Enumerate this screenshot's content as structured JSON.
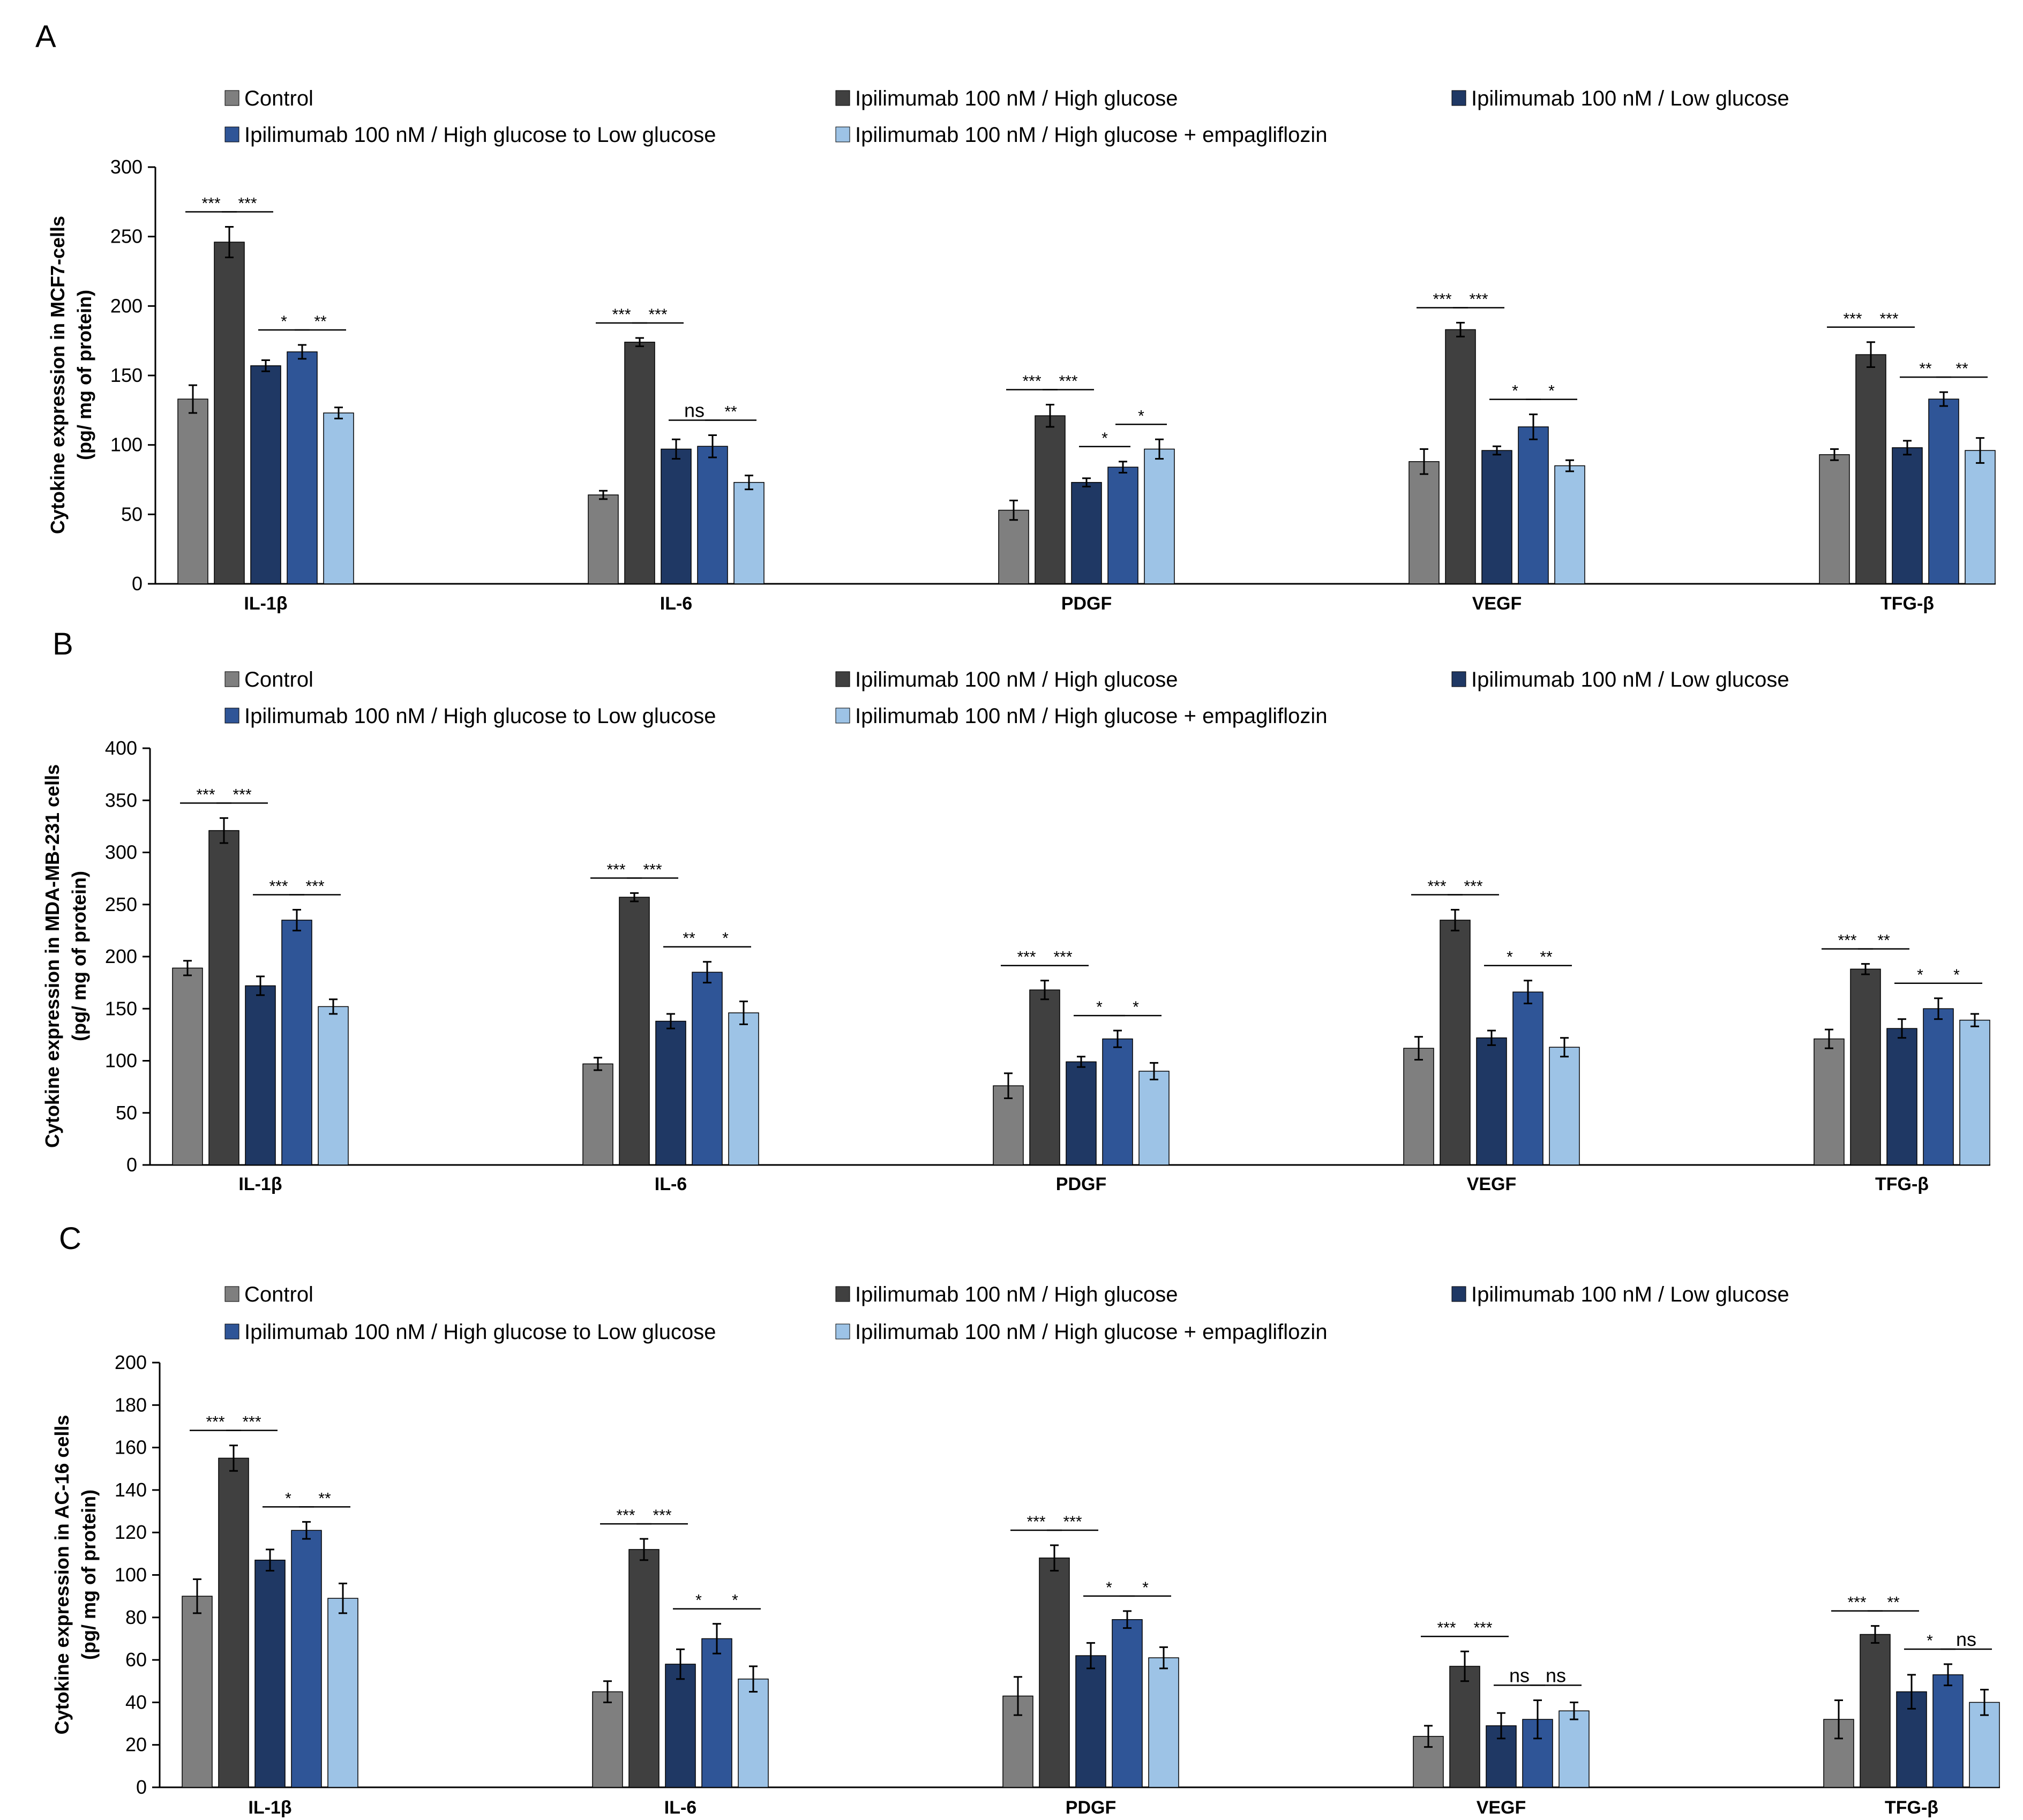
{
  "colors": {
    "control": "#7f7f7f",
    "high_glucose": "#404040",
    "low_glucose": "#1f3864",
    "high_to_low": "#2f5597",
    "empagliflozin": "#9dc3e6",
    "axis": "#000000"
  },
  "chart_data": [
    {
      "type": "bar",
      "panel_label": "A",
      "ylabel_line1": "Cytokine expression  in MCF7-cells",
      "ylabel_line2": "(pg/ mg of protein)",
      "ylim": [
        0,
        300
      ],
      "yticks": [
        "0",
        "50",
        "100",
        "150",
        "200",
        "250",
        "300"
      ],
      "categories": [
        "IL-1β",
        "IL-6",
        "PDGF",
        "VEGF",
        "TFG-β"
      ],
      "legend_position": "top",
      "series": [
        {
          "name": "Control",
          "values": [
            133,
            64,
            53,
            88,
            93
          ],
          "errors": [
            10,
            3,
            7,
            9,
            4
          ]
        },
        {
          "name": "Ipilimumab 100 nM / High glucose",
          "values": [
            246,
            174,
            121,
            183,
            165
          ],
          "errors": [
            11,
            3,
            8,
            5,
            9
          ]
        },
        {
          "name": "Ipilimumab 100 nM / Low glucose",
          "values": [
            157,
            97,
            73,
            96,
            98
          ],
          "errors": [
            4,
            7,
            3,
            3,
            5
          ]
        },
        {
          "name": "Ipilimumab 100 nM / High glucose to Low glucose",
          "values": [
            167,
            99,
            84,
            113,
            133
          ],
          "errors": [
            5,
            8,
            4,
            9,
            5
          ]
        },
        {
          "name": "Ipilimumab 100 nM / High glucose + empagliflozin",
          "values": [
            123,
            73,
            97,
            85,
            96
          ],
          "errors": [
            4,
            5,
            7,
            4,
            9
          ]
        }
      ],
      "significance": [
        {
          "cat": 0,
          "from": 0,
          "to": 1,
          "label": "***"
        },
        {
          "cat": 0,
          "from": 1,
          "to": 2,
          "label": "***"
        },
        {
          "cat": 0,
          "from": 2,
          "to": 3,
          "label": "*"
        },
        {
          "cat": 0,
          "from": 3,
          "to": 4,
          "label": "**"
        },
        {
          "cat": 1,
          "from": 0,
          "to": 1,
          "label": "***"
        },
        {
          "cat": 1,
          "from": 1,
          "to": 2,
          "label": "***"
        },
        {
          "cat": 1,
          "from": 2,
          "to": 3,
          "label": "ns"
        },
        {
          "cat": 1,
          "from": 3,
          "to": 4,
          "label": "**"
        },
        {
          "cat": 2,
          "from": 0,
          "to": 1,
          "label": "***"
        },
        {
          "cat": 2,
          "from": 1,
          "to": 2,
          "label": "***"
        },
        {
          "cat": 2,
          "from": 2,
          "to": 3,
          "label": "*"
        },
        {
          "cat": 2,
          "from": 3,
          "to": 4,
          "label": "*"
        },
        {
          "cat": 3,
          "from": 0,
          "to": 1,
          "label": "***"
        },
        {
          "cat": 3,
          "from": 1,
          "to": 2,
          "label": "***"
        },
        {
          "cat": 3,
          "from": 2,
          "to": 3,
          "label": "*"
        },
        {
          "cat": 3,
          "from": 3,
          "to": 4,
          "label": "*"
        },
        {
          "cat": 4,
          "from": 0,
          "to": 1,
          "label": "***"
        },
        {
          "cat": 4,
          "from": 1,
          "to": 2,
          "label": "***"
        },
        {
          "cat": 4,
          "from": 2,
          "to": 3,
          "label": "**"
        },
        {
          "cat": 4,
          "from": 3,
          "to": 4,
          "label": "**"
        }
      ]
    },
    {
      "type": "bar",
      "panel_label": "B",
      "ylabel_line1": "Cytokine expression  in MDA-MB-231 cells",
      "ylabel_line2": "(pg/ mg of protein)",
      "ylim": [
        0,
        400
      ],
      "yticks": [
        "0",
        "50",
        "100",
        "150",
        "200",
        "250",
        "300",
        "350",
        "400"
      ],
      "categories": [
        "IL-1β",
        "IL-6",
        "PDGF",
        "VEGF",
        "TFG-β"
      ],
      "legend_position": "top",
      "series": [
        {
          "name": "Control",
          "values": [
            189,
            97,
            76,
            112,
            121
          ],
          "errors": [
            7,
            6,
            12,
            11,
            9
          ]
        },
        {
          "name": "Ipilimumab 100 nM / High glucose",
          "values": [
            321,
            257,
            168,
            235,
            188
          ],
          "errors": [
            12,
            4,
            9,
            10,
            5
          ]
        },
        {
          "name": "Ipilimumab 100 nM / Low glucose",
          "values": [
            172,
            138,
            99,
            122,
            131
          ],
          "errors": [
            9,
            7,
            5,
            7,
            9
          ]
        },
        {
          "name": "Ipilimumab 100 nM / High glucose to Low glucose",
          "values": [
            235,
            185,
            121,
            166,
            150
          ],
          "errors": [
            10,
            10,
            8,
            11,
            10
          ]
        },
        {
          "name": "Ipilimumab 100 nM / High glucose + empagliflozin",
          "values": [
            152,
            146,
            90,
            113,
            139
          ],
          "errors": [
            7,
            11,
            8,
            9,
            6
          ]
        }
      ],
      "significance": [
        {
          "cat": 0,
          "from": 0,
          "to": 1,
          "label": "***"
        },
        {
          "cat": 0,
          "from": 1,
          "to": 2,
          "label": "***"
        },
        {
          "cat": 0,
          "from": 2,
          "to": 3,
          "label": "***"
        },
        {
          "cat": 0,
          "from": 3,
          "to": 4,
          "label": "***"
        },
        {
          "cat": 1,
          "from": 0,
          "to": 1,
          "label": "***"
        },
        {
          "cat": 1,
          "from": 1,
          "to": 2,
          "label": "***"
        },
        {
          "cat": 1,
          "from": 2,
          "to": 3,
          "label": "**"
        },
        {
          "cat": 1,
          "from": 3,
          "to": 4,
          "label": "*"
        },
        {
          "cat": 2,
          "from": 0,
          "to": 1,
          "label": "***"
        },
        {
          "cat": 2,
          "from": 1,
          "to": 2,
          "label": "***"
        },
        {
          "cat": 2,
          "from": 2,
          "to": 3,
          "label": "*"
        },
        {
          "cat": 2,
          "from": 3,
          "to": 4,
          "label": "*"
        },
        {
          "cat": 3,
          "from": 0,
          "to": 1,
          "label": "***"
        },
        {
          "cat": 3,
          "from": 1,
          "to": 2,
          "label": "***"
        },
        {
          "cat": 3,
          "from": 2,
          "to": 3,
          "label": "*"
        },
        {
          "cat": 3,
          "from": 3,
          "to": 4,
          "label": "**"
        },
        {
          "cat": 4,
          "from": 0,
          "to": 1,
          "label": "***"
        },
        {
          "cat": 4,
          "from": 1,
          "to": 2,
          "label": "**"
        },
        {
          "cat": 4,
          "from": 2,
          "to": 3,
          "label": "*"
        },
        {
          "cat": 4,
          "from": 3,
          "to": 4,
          "label": "*"
        }
      ]
    },
    {
      "type": "bar",
      "panel_label": "C",
      "ylabel_line1": "Cytokine expression  in AC-16 cells",
      "ylabel_line2": "(pg/ mg of protein)",
      "ylim": [
        0,
        200
      ],
      "yticks": [
        "0",
        "20",
        "40",
        "60",
        "80",
        "100",
        "120",
        "140",
        "160",
        "180",
        "200"
      ],
      "categories": [
        "IL-1β",
        "IL-6",
        "PDGF",
        "VEGF",
        "TFG-β"
      ],
      "legend_position": "top",
      "series": [
        {
          "name": "Control",
          "values": [
            90,
            45,
            43,
            24,
            32
          ],
          "errors": [
            8,
            5,
            9,
            5,
            9
          ]
        },
        {
          "name": "Ipilimumab 100 nM / High glucose",
          "values": [
            155,
            112,
            108,
            57,
            72
          ],
          "errors": [
            6,
            5,
            6,
            7,
            4
          ]
        },
        {
          "name": "Ipilimumab 100 nM / Low glucose",
          "values": [
            107,
            58,
            62,
            29,
            45
          ],
          "errors": [
            5,
            7,
            6,
            6,
            8
          ]
        },
        {
          "name": "Ipilimumab 100 nM / High glucose to Low glucose",
          "values": [
            121,
            70,
            79,
            32,
            53
          ],
          "errors": [
            4,
            7,
            4,
            9,
            5
          ]
        },
        {
          "name": "Ipilimumab 100 nM / High glucose + empagliflozin",
          "values": [
            89,
            51,
            61,
            36,
            40
          ],
          "errors": [
            7,
            6,
            5,
            4,
            6
          ]
        }
      ],
      "significance": [
        {
          "cat": 0,
          "from": 0,
          "to": 1,
          "label": "***"
        },
        {
          "cat": 0,
          "from": 1,
          "to": 2,
          "label": "***"
        },
        {
          "cat": 0,
          "from": 2,
          "to": 3,
          "label": "*"
        },
        {
          "cat": 0,
          "from": 3,
          "to": 4,
          "label": "**"
        },
        {
          "cat": 1,
          "from": 0,
          "to": 1,
          "label": "***"
        },
        {
          "cat": 1,
          "from": 1,
          "to": 2,
          "label": "***"
        },
        {
          "cat": 1,
          "from": 2,
          "to": 3,
          "label": "*"
        },
        {
          "cat": 1,
          "from": 3,
          "to": 4,
          "label": "*"
        },
        {
          "cat": 2,
          "from": 0,
          "to": 1,
          "label": "***"
        },
        {
          "cat": 2,
          "from": 1,
          "to": 2,
          "label": "***"
        },
        {
          "cat": 2,
          "from": 2,
          "to": 3,
          "label": "*"
        },
        {
          "cat": 2,
          "from": 3,
          "to": 4,
          "label": "*"
        },
        {
          "cat": 3,
          "from": 0,
          "to": 1,
          "label": "***"
        },
        {
          "cat": 3,
          "from": 1,
          "to": 2,
          "label": "***"
        },
        {
          "cat": 3,
          "from": 2,
          "to": 3,
          "label": "ns"
        },
        {
          "cat": 3,
          "from": 3,
          "to": 4,
          "label": "ns"
        },
        {
          "cat": 4,
          "from": 0,
          "to": 1,
          "label": "***"
        },
        {
          "cat": 4,
          "from": 1,
          "to": 2,
          "label": "**"
        },
        {
          "cat": 4,
          "from": 2,
          "to": 3,
          "label": "*"
        },
        {
          "cat": 4,
          "from": 3,
          "to": 4,
          "label": "ns"
        }
      ]
    }
  ]
}
